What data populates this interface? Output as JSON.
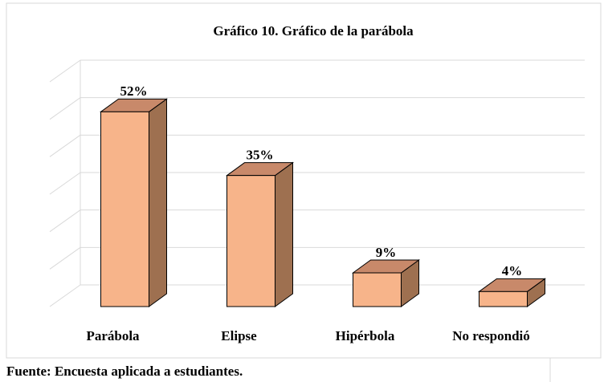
{
  "chart_data": {
    "type": "bar3d",
    "title": "Gráfico 10. Gráfico de la parábola",
    "categories": [
      "Parábola",
      "Elipse",
      "Hipérbola",
      "No respondió"
    ],
    "values": [
      52,
      35,
      9,
      4
    ],
    "value_labels": [
      "52%",
      "35%",
      "9%",
      "4%"
    ],
    "color": "#f7b48a",
    "ylim": [
      0,
      60
    ],
    "yticks": [
      0,
      10,
      20,
      30,
      40,
      50,
      60
    ],
    "grid": true,
    "source": "Fuente: Encuesta aplicada a estudiantes."
  }
}
